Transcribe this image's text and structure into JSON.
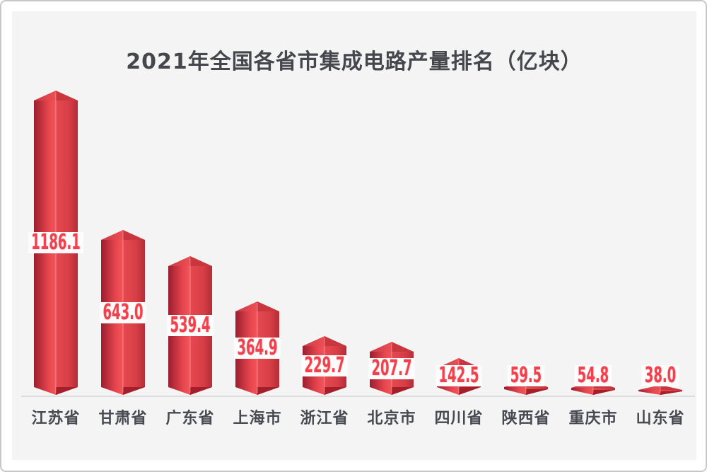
{
  "chart_data": {
    "type": "bar",
    "title": "2021年全国各省市集成电路产量排名（亿块）",
    "unit": "亿块",
    "categories": [
      "江苏省",
      "甘肃省",
      "广东省",
      "上海市",
      "浙江省",
      "北京市",
      "四川省",
      "陕西省",
      "重庆市",
      "山东省"
    ],
    "values": [
      1186.1,
      643.0,
      539.4,
      364.9,
      229.7,
      207.7,
      142.5,
      59.5,
      54.8,
      38.0
    ],
    "value_labels": [
      "1186.1",
      "643.0",
      "539.4",
      "364.9",
      "229.7",
      "207.7",
      "142.5",
      "59.5",
      "54.8",
      "38.0"
    ],
    "xlabel": "",
    "ylabel": "",
    "ylim": [
      0,
      1186.1
    ],
    "grid": false,
    "legend": null,
    "bar_style": "3d-prism-red",
    "value_label_position": "white band at vertical middle of each bar"
  },
  "colors": {
    "frame_border": "#c7c7c7",
    "panel_bg": "#f4f4f5",
    "title_text": "#45474c",
    "axis_label_text": "#474a51",
    "axis_line": "#dcdcdd",
    "value_text": "#f1414d",
    "label_box_bg": "#fcfcfd",
    "bar_face_dark_edge": "#9c1e2e",
    "bar_face_bright": "#e9474f",
    "bar_face_highlight": "#f0565b",
    "bar_right_face": "#d63e46",
    "bar_right_edge": "#b52d37",
    "bar_roof_left": "#e74a50",
    "bar_roof_right": "#c8363e",
    "bar_bottom_wedge": "#a31f29"
  }
}
